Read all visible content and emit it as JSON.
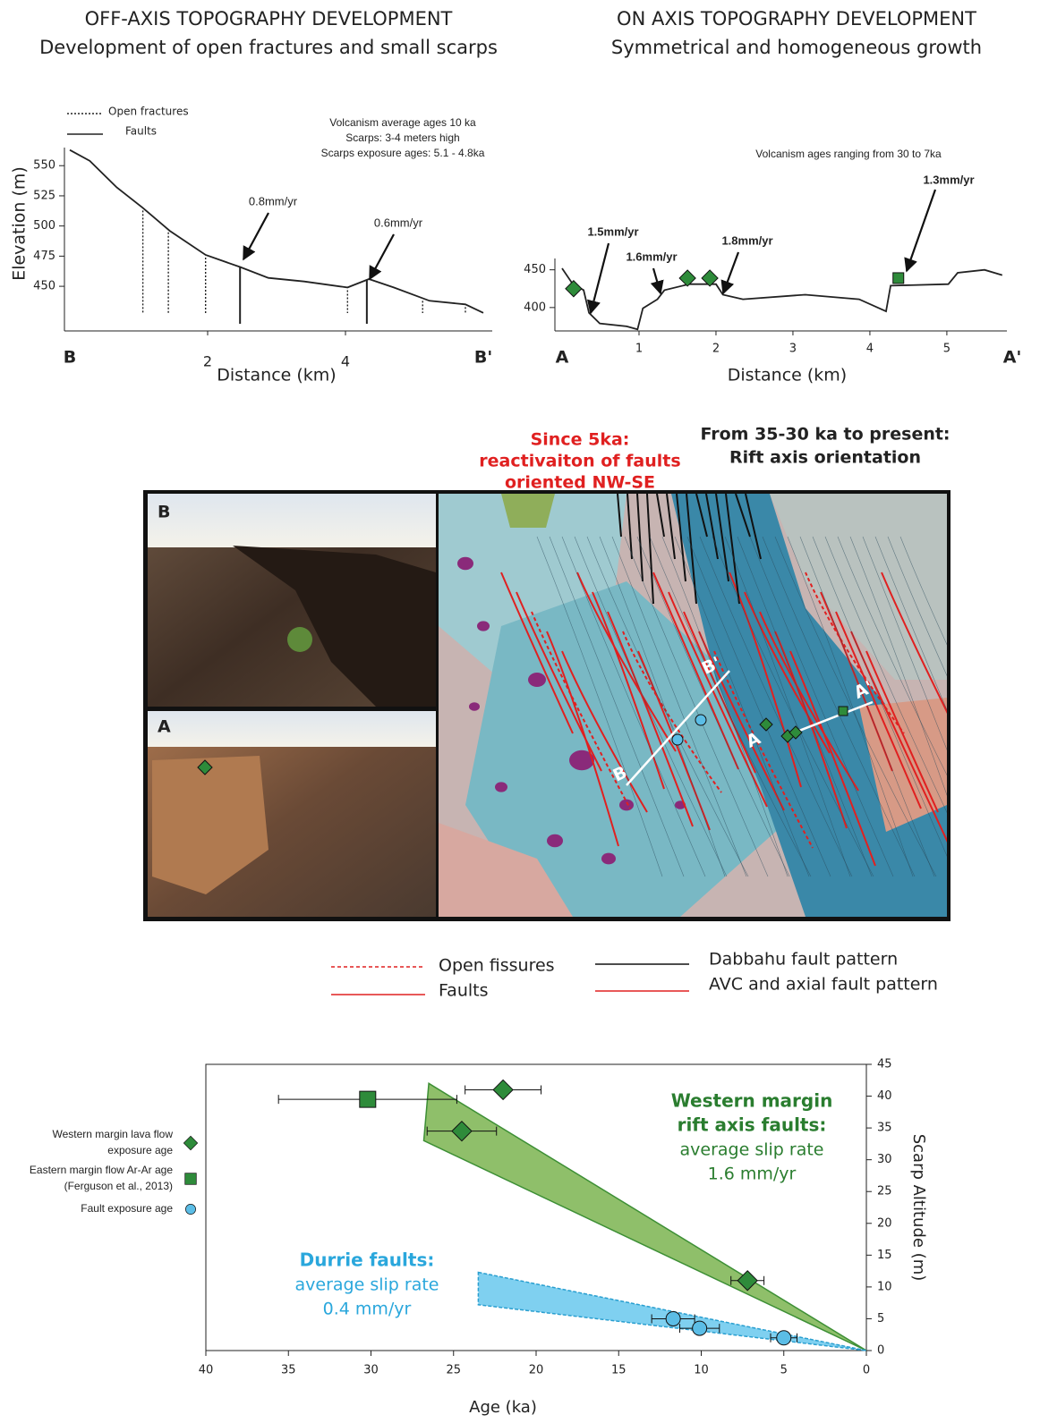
{
  "chart_data": [
    {
      "type": "line",
      "title": "OFF-AXIS TOPOGRAPHY DEVELOPMENT",
      "subtitle": "Development of open fractures and small scarps",
      "x_label": "Distance (km)",
      "y_label": "Elevation (m)",
      "xlim": [
        0,
        6
      ],
      "ylim": [
        413,
        565
      ],
      "xticks": [
        {
          "value": 0,
          "label": "B"
        },
        2,
        4,
        {
          "value": 6,
          "label": "B'"
        }
      ],
      "yticks": [
        450,
        475,
        500,
        525,
        550
      ],
      "series": [
        {
          "color": "#222222",
          "x": [
            0,
            0.29,
            0.68,
            1.06,
            1.45,
            1.97,
            2.47,
            2.88,
            3.4,
            4.03,
            4.34,
            4.7,
            5.22,
            5.74,
            6
          ],
          "values": [
            563,
            554,
            532,
            515,
            496,
            476,
            466,
            457,
            454,
            449,
            456,
            449,
            438,
            435,
            428
          ]
        }
      ],
      "fractures": {
        "name": "Open fractures",
        "x": [
          1.06,
          1.43,
          1.97,
          4.03,
          5.12,
          5.74
        ]
      },
      "faults": {
        "name": "Faults",
        "x": [
          2.47,
          4.31
        ]
      },
      "annotations": [
        "Volcanism average ages 10 ka",
        "Scarps: 3-4 meters high",
        "Scarps exposure ages: 5.1 - 4.8ka",
        "0.8mm/yr",
        "0.6mm/yr"
      ]
    },
    {
      "type": "line",
      "title": "ON AXIS TOPOGRAPHY DEVELOPMENT",
      "subtitle": "Symmetrical and homogeneous growth",
      "x_label": "Distance (km)",
      "xlim": [
        0,
        5.85
      ],
      "ylim": [
        369,
        465
      ],
      "xticks": [
        {
          "value": 0,
          "label": "A"
        },
        1,
        2,
        3,
        4,
        5,
        {
          "value": 5.85,
          "label": "A'"
        }
      ],
      "yticks": [
        400,
        450
      ],
      "series": [
        {
          "color": "#222222",
          "x": [
            0,
            0.14,
            0.28,
            0.35,
            0.49,
            0.84,
            0.98,
            1.05,
            1.24,
            1.33,
            1.65,
            2.0,
            2.09,
            2.35,
            3.16,
            3.86,
            4.21,
            4.27,
            5.02,
            5.14,
            5.49,
            5.72
          ],
          "values": [
            452,
            431,
            423,
            393,
            379,
            375,
            371,
            399,
            411,
            423,
            431,
            431,
            417,
            411,
            417,
            411,
            395,
            429,
            431,
            446,
            450,
            443
          ]
        }
      ],
      "diamonds": {
        "color": "#2e8b3a",
        "x": [
          0.15,
          1.63,
          1.92
        ],
        "values": [
          425,
          439,
          439
        ]
      },
      "squares": {
        "color": "#2e8b3a",
        "x": [
          4.37
        ],
        "values": [
          439
        ]
      },
      "annotations": [
        "Volcanism ages ranging from 30 to 7ka",
        "1.5mm/yr",
        "1.6mm/yr",
        "1.8mm/yr",
        "1.3mm/yr"
      ]
    },
    {
      "type": "scatter",
      "x_label": "Age (ka)",
      "y_label": "Scarp Altitude (m)",
      "xlim": [
        40,
        0
      ],
      "ylim": [
        0,
        45
      ],
      "xticks": [
        40,
        35,
        30,
        25,
        20,
        15,
        10,
        5,
        0
      ],
      "yticks": [
        0,
        5,
        10,
        15,
        20,
        25,
        30,
        35,
        40,
        45
      ],
      "series": [
        {
          "name": "Western margin lava flow exposure age",
          "marker": "diamond",
          "color": "#2e8b3a",
          "x": [
            22,
            24.5,
            7.2
          ],
          "xerr": [
            2.3,
            2.1,
            1
          ],
          "values": [
            41,
            34.5,
            11
          ]
        },
        {
          "name": "Eastern margin flow Ar-Ar age (Ferguson et al., 2013)",
          "marker": "square",
          "color": "#2e8b3a",
          "x": [
            30.2
          ],
          "xerr": [
            5.4
          ],
          "values": [
            39.5
          ]
        },
        {
          "name": "Fault exposure age",
          "marker": "circle",
          "color": "#5bbde6",
          "x": [
            11.7,
            10.1,
            5
          ],
          "xerr": [
            1.3,
            1.2,
            0.8
          ],
          "values": [
            5,
            3.5,
            2
          ]
        }
      ],
      "envelopes": [
        {
          "color": "#8fbf6a",
          "edge": "#3d8f35",
          "x": [
            26.5,
            0,
            26.8
          ],
          "values": [
            42,
            0,
            33
          ],
          "heading": [
            "Western margin",
            "rift axis faults:"
          ],
          "text": [
            "average slip rate",
            "1.6 mm/yr"
          ]
        },
        {
          "color": "#7fd0f0",
          "edge": "#2a9fd0",
          "x": [
            23.5,
            0,
            23.5
          ],
          "values": [
            12.3,
            0,
            7.2
          ],
          "heading": [
            "Durrie faults:"
          ],
          "text": [
            "average slip rate",
            "0.4 mm/yr"
          ]
        }
      ]
    }
  ],
  "map": {
    "title_red": [
      "Since 5ka:",
      "reactivaiton of faults",
      "oriented NW-SE"
    ],
    "title_black": [
      "From 35-30 ka to present:",
      "Rift axis orientation"
    ],
    "photo_labels": [
      "B",
      "A"
    ],
    "profile_labels": [
      "B",
      "B'",
      "A",
      "A'"
    ],
    "legend": [
      "Open fissures",
      "Faults",
      "Dabbahu fault pattern",
      "AVC and axial fault pattern"
    ]
  }
}
